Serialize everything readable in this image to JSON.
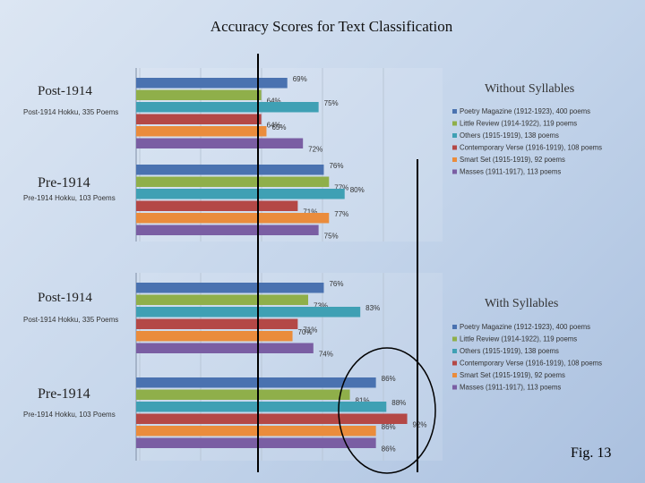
{
  "page": {
    "title": "Accuracy Scores for Text Classification",
    "figure_label": "Fig. 13"
  },
  "series_colors": [
    "#4a72b0",
    "#8faf4a",
    "#3fa0b4",
    "#b44846",
    "#ea8c3c",
    "#7a5ea3"
  ],
  "annotation_colors": {
    "lines": "#000000",
    "circle": "#000000"
  },
  "chart_data": [
    {
      "type": "bar",
      "orientation": "horizontal",
      "title": "Without Syllables",
      "unit": "%",
      "groups": [
        {
          "label": "Post-1914",
          "sublabel": "Post-1914 Hokku, 335 Poems"
        },
        {
          "label": "Pre-1914",
          "sublabel": "Pre-1914 Hokku, 103 Poems"
        }
      ],
      "series": [
        {
          "name": "Poetry Magazine (1912-1923), 400 poems",
          "values": [
            69,
            76
          ]
        },
        {
          "name": "Little Review (1914-1922), 119 poems",
          "values": [
            64,
            77
          ]
        },
        {
          "name": "Others (1915-1919), 138 poems",
          "values": [
            75,
            80
          ]
        },
        {
          "name": "Contemporary Verse (1916-1919), 108 poems",
          "values": [
            64,
            71
          ]
        },
        {
          "name": "Smart Set (1915-1919), 92 poems",
          "values": [
            65,
            77
          ]
        },
        {
          "name": "Masses (1911-1917), 113 poems",
          "values": [
            72,
            75
          ]
        }
      ]
    },
    {
      "type": "bar",
      "orientation": "horizontal",
      "title": "With Syllables",
      "unit": "%",
      "groups": [
        {
          "label": "Post-1914",
          "sublabel": "Post-1914 Hokku, 335 Poems"
        },
        {
          "label": "Pre-1914",
          "sublabel": "Pre-1914 Hokku, 103 Poems"
        }
      ],
      "series": [
        {
          "name": "Poetry Magazine (1912-1923), 400 poems",
          "values": [
            76,
            86
          ]
        },
        {
          "name": "Little Review (1914-1922), 119 poems",
          "values": [
            73,
            81
          ]
        },
        {
          "name": "Others (1915-1919), 138 poems",
          "values": [
            83,
            88
          ]
        },
        {
          "name": "Contemporary Verse (1916-1919), 108 poems",
          "values": [
            71,
            92
          ]
        },
        {
          "name": "Smart Set (1915-1919), 92 poems",
          "values": [
            70,
            86
          ]
        },
        {
          "name": "Masses (1911-1917), 113 poems",
          "values": [
            74,
            86
          ]
        }
      ]
    }
  ]
}
